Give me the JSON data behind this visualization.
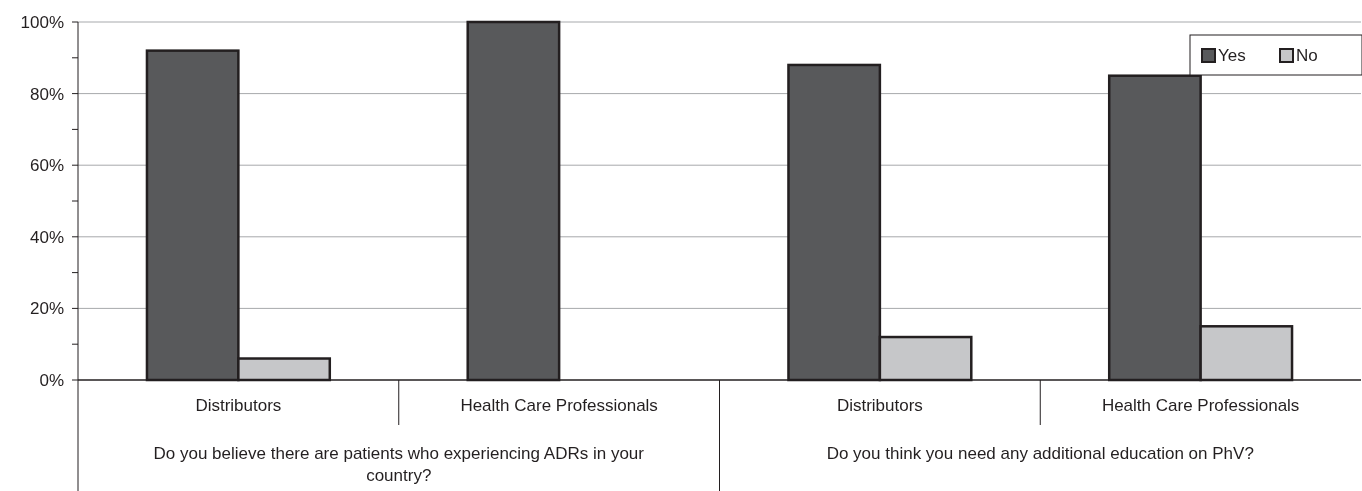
{
  "chart_data": {
    "type": "bar",
    "categories": [
      "Distributors",
      "Health Care Professionals",
      "Distributors",
      "Health Care Professionals"
    ],
    "series": [
      {
        "name": "Yes",
        "color": "#58595b",
        "values": [
          92,
          100,
          88,
          85
        ]
      },
      {
        "name": "No",
        "color": "#c6c7c9",
        "values": [
          6,
          0,
          12,
          15
        ]
      }
    ],
    "annotations": [
      "Do you believe there are patients who experiencing ADRs in your country?",
      "Do you think you need any additional education on PhV?"
    ],
    "ylim": [
      0,
      100
    ],
    "yticks": [
      {
        "value": 0,
        "label": "0%"
      },
      {
        "value": 10,
        "label": null
      },
      {
        "value": 20,
        "label": "20%"
      },
      {
        "value": 30,
        "label": null
      },
      {
        "value": 40,
        "label": "40%"
      },
      {
        "value": 50,
        "label": null
      },
      {
        "value": 60,
        "label": "60%"
      },
      {
        "value": 70,
        "label": null
      },
      {
        "value": 80,
        "label": "80%"
      },
      {
        "value": 90,
        "label": null
      },
      {
        "value": 100,
        "label": "100%"
      }
    ],
    "grid": "y",
    "legend": "top right"
  }
}
